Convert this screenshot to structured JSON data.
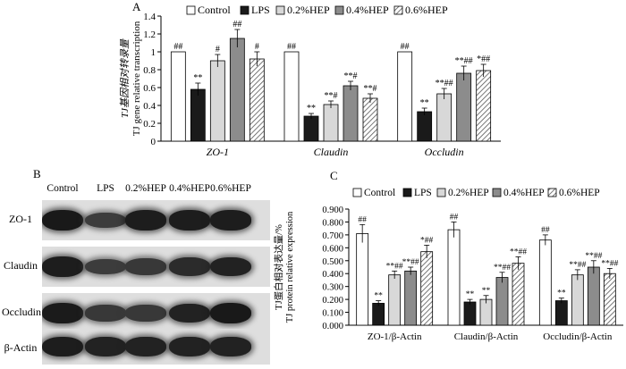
{
  "colors": {
    "control": "#ffffff",
    "lps": "#1a1a1a",
    "hep02": "#d8d8d8",
    "hep04": "#8c8c8c",
    "hep06": "hatch-dense"
  },
  "panel_b": {
    "letter": "B",
    "lanes": [
      "Control",
      "LPS",
      "0.2%HEP",
      "0.4%HEP",
      "0.6%HEP"
    ],
    "rows": [
      {
        "label": "ZO-1",
        "intensity": [
          0.95,
          0.55,
          0.9,
          0.9,
          0.9
        ]
      },
      {
        "label": "Claudin",
        "intensity": [
          0.9,
          0.55,
          0.6,
          0.75,
          0.85
        ]
      },
      {
        "label": "Occludin",
        "intensity": [
          0.92,
          0.6,
          0.6,
          0.85,
          0.95
        ]
      },
      {
        "label": "β-Actin",
        "intensity": [
          0.9,
          0.85,
          0.85,
          0.85,
          0.85
        ]
      }
    ]
  },
  "chart_data": [
    {
      "panel": "A",
      "type": "bar",
      "title": "",
      "ylabel_lines": [
        "TJ基因相对转录量",
        "TJ gene relative transcription"
      ],
      "xlabel": "",
      "ylim": [
        0,
        1.4
      ],
      "yticks": [
        "0",
        "0.2",
        "0.4",
        "0.6",
        "0.8",
        "1",
        "1.2",
        "1.4"
      ],
      "grid": false,
      "legend_position": "top",
      "categories": [
        "ZO-1",
        "Claudin",
        "Occludin"
      ],
      "series": [
        {
          "name": "Control",
          "values": [
            1.0,
            1.0,
            1.0
          ],
          "errors": [
            0,
            0,
            0
          ],
          "sig": [
            "##",
            "##",
            "##"
          ]
        },
        {
          "name": "LPS",
          "values": [
            0.58,
            0.28,
            0.33
          ],
          "errors": [
            0.07,
            0.03,
            0.04
          ],
          "sig": [
            "**",
            "**",
            "**"
          ]
        },
        {
          "name": "0.2%HEP",
          "values": [
            0.9,
            0.41,
            0.53
          ],
          "errors": [
            0.07,
            0.04,
            0.06
          ],
          "sig": [
            "#",
            "**#",
            "**##"
          ]
        },
        {
          "name": "0.4%HEP",
          "values": [
            1.15,
            0.62,
            0.76
          ],
          "errors": [
            0.1,
            0.05,
            0.08
          ],
          "sig": [
            "##",
            "**#",
            "**##"
          ]
        },
        {
          "name": "0.6%HEP",
          "values": [
            0.92,
            0.48,
            0.79
          ],
          "errors": [
            0.08,
            0.05,
            0.07
          ],
          "sig": [
            "#",
            "**#",
            "*##"
          ]
        }
      ]
    },
    {
      "panel": "C",
      "type": "bar",
      "title": "",
      "ylabel_lines": [
        "TJ蛋白相对表达量/%",
        "TJ protein relative expression"
      ],
      "xlabel": "",
      "ylim": [
        0,
        0.9
      ],
      "yticks": [
        "0.000",
        "0.100",
        "0.200",
        "0.300",
        "0.400",
        "0.500",
        "0.600",
        "0.700",
        "0.800",
        "0.900"
      ],
      "grid": false,
      "legend_position": "top",
      "categories": [
        "ZO-1/β-Actin",
        "Claudin/β-Actin",
        "Occludin/β-Actin"
      ],
      "series": [
        {
          "name": "Control",
          "values": [
            0.71,
            0.74,
            0.66
          ],
          "errors": [
            0.07,
            0.06,
            0.04
          ],
          "sig": [
            "##",
            "##",
            "##"
          ]
        },
        {
          "name": "LPS",
          "values": [
            0.17,
            0.18,
            0.19
          ],
          "errors": [
            0.02,
            0.02,
            0.02
          ],
          "sig": [
            "**",
            "**",
            "**"
          ]
        },
        {
          "name": "0.2%HEP",
          "values": [
            0.39,
            0.2,
            0.39
          ],
          "errors": [
            0.03,
            0.03,
            0.04
          ],
          "sig": [
            "**##",
            "**",
            "**##"
          ]
        },
        {
          "name": "0.4%HEP",
          "values": [
            0.42,
            0.37,
            0.45
          ],
          "errors": [
            0.03,
            0.04,
            0.05
          ],
          "sig": [
            "**##",
            "**##",
            "**##"
          ]
        },
        {
          "name": "0.6%HEP",
          "values": [
            0.57,
            0.48,
            0.4
          ],
          "errors": [
            0.05,
            0.05,
            0.04
          ],
          "sig": [
            "*##",
            "**##",
            "**##"
          ]
        }
      ]
    }
  ]
}
